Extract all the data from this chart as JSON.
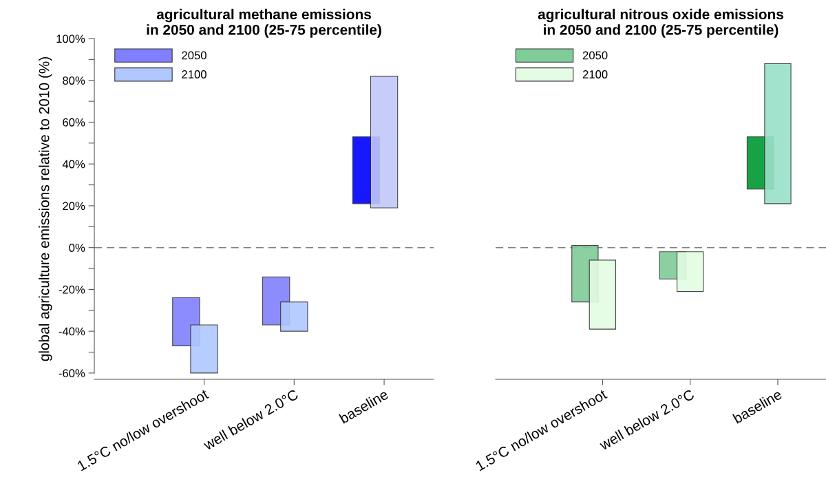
{
  "chart_data": [
    {
      "type": "bar",
      "title": "agricultural methane emissions\nin 2050 and 2100 (25-75 percentile)",
      "ylabel": "global agriculture emissions relative to 2010 (%)",
      "categories": [
        "1.5°C no/low overshoot",
        "well below 2.0°C",
        "baseline"
      ],
      "series": [
        {
          "name": "2050",
          "color": "#8080ff",
          "colors": [
            "#8080ff",
            "#8080ff",
            "#0000ff"
          ],
          "base": [
            -47,
            -37,
            21
          ],
          "values": [
            23,
            23,
            32
          ]
        },
        {
          "name": "2100",
          "color": "#b0c8ff",
          "colors": [
            "#b0c8ff",
            "#b0c8ff",
            "#c0c8f8"
          ],
          "base": [
            -60,
            -40,
            19
          ],
          "values": [
            23,
            14,
            63
          ]
        }
      ],
      "ylim": [
        -63,
        100
      ],
      "yticks": [
        {
          "value": -60,
          "label": "-60%"
        },
        {
          "value": -50,
          "label": null
        },
        {
          "value": -40,
          "label": "-40%"
        },
        {
          "value": -30,
          "label": null
        },
        {
          "value": -20,
          "label": "-20%"
        },
        {
          "value": -10,
          "label": null
        },
        {
          "value": 0,
          "label": "0%"
        },
        {
          "value": 10,
          "label": null
        },
        {
          "value": 20,
          "label": "20%"
        },
        {
          "value": 30,
          "label": null
        },
        {
          "value": 40,
          "label": "40%"
        },
        {
          "value": 50,
          "label": null
        },
        {
          "value": 60,
          "label": "60%"
        },
        {
          "value": 70,
          "label": null
        },
        {
          "value": 80,
          "label": "80%"
        },
        {
          "value": 90,
          "label": null
        },
        {
          "value": 100,
          "label": "100%"
        }
      ],
      "ref_lines": [
        {
          "axis": "y",
          "value": 0,
          "label": null,
          "color": "#808080",
          "line_style": "dashed"
        }
      ],
      "legend": "top left",
      "grid": false
    },
    {
      "type": "bar",
      "title": "agricultural nitrous oxide emissions\nin 2050 and 2100 (25-75 percentile)",
      "categories": [
        "1.5°C no/low overshoot",
        "well below 2.0°C",
        "baseline"
      ],
      "series": [
        {
          "name": "2050",
          "color": "#80cc99",
          "colors": [
            "#80cc99",
            "#80cc99",
            "#009933"
          ],
          "base": [
            -26,
            -15,
            28
          ],
          "values": [
            27,
            13,
            25
          ]
        },
        {
          "name": "2100",
          "color": "#e3fce3",
          "colors": [
            "#e3fce3",
            "#e3fce3",
            "#99e0c8"
          ],
          "base": [
            -39,
            -21,
            21
          ],
          "values": [
            33,
            19,
            67
          ]
        }
      ],
      "ylim": [
        -63,
        100
      ],
      "ref_lines": [
        {
          "axis": "y",
          "value": 0,
          "label": null,
          "color": "#808080",
          "line_style": "dashed"
        }
      ],
      "tick_labels": "x",
      "legend": "top left",
      "grid": false
    }
  ]
}
